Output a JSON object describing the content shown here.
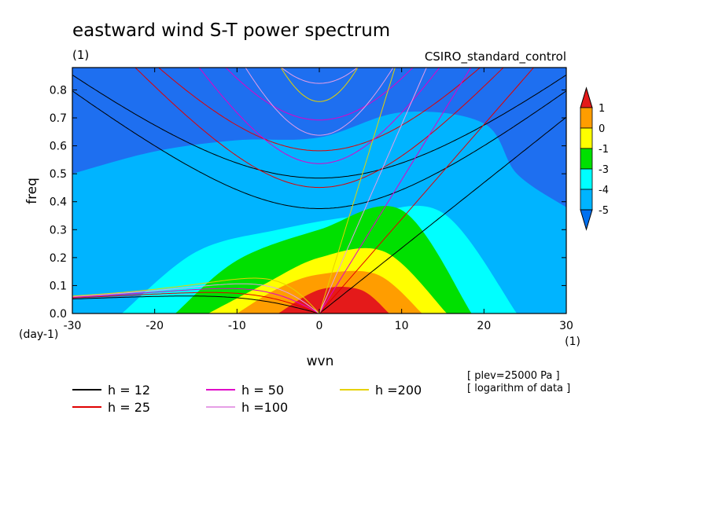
{
  "chart_data": {
    "type": "heatmap",
    "title": "eastward wind S-T power spectrum",
    "subtitle_left": "(1)",
    "subtitle_right": "CSIRO_standard_control",
    "xlabel": "wvn",
    "ylabel": "freq",
    "x_unit": "(1)",
    "y_unit": "(day-1)",
    "xlim": [
      -30,
      30
    ],
    "ylim": [
      0,
      0.88
    ],
    "x_ticks": [
      -30,
      -20,
      -10,
      0,
      10,
      20,
      30
    ],
    "y_ticks": [
      0.0,
      0.1,
      0.2,
      0.3,
      0.4,
      0.5,
      0.6,
      0.7,
      0.8
    ],
    "x_tick_labels": [
      "-30",
      "-20",
      "-10",
      "0",
      "10",
      "20",
      "30"
    ],
    "y_tick_labels": [
      "0.0",
      "0.1",
      "0.2",
      "0.3",
      "0.4",
      "0.5",
      "0.6",
      "0.7",
      "0.8"
    ],
    "colorbar": {
      "labels": [
        "1",
        "0",
        "-1",
        "-3",
        "-4",
        "-5"
      ],
      "colors": [
        "#e41a1a",
        "#ff9d00",
        "#ffff00",
        "#00e000",
        "#00ffff",
        "#00b4ff",
        "#0070f0"
      ]
    },
    "contour_fill": [
      {
        "level": "<-5",
        "color": "#1e6ff0",
        "x": [
          -30,
          30
        ],
        "ymax": 0.88
      },
      {
        "level": "-5",
        "color": "#00b4ff",
        "x": [
          -30,
          -20,
          -10,
          0,
          10,
          20,
          24,
          30,
          30,
          -30
        ],
        "y": [
          0.5,
          0.58,
          0.62,
          0.63,
          0.72,
          0.68,
          0.5,
          0.38,
          0.0,
          0.0
        ]
      },
      {
        "level": "-4",
        "color": "#00ffff",
        "x": [
          -24,
          -15,
          -5,
          5,
          15,
          24
        ],
        "y": [
          0.0,
          0.22,
          0.3,
          0.35,
          0.36,
          0.0
        ]
      },
      {
        "level": "-3",
        "color": "#00e000",
        "x": [
          -17.5,
          -10,
          0,
          10,
          18.5
        ],
        "y": [
          0.0,
          0.19,
          0.3,
          0.37,
          0.0
        ]
      },
      {
        "level": "-1",
        "color": "#ffff00",
        "x": [
          -13.5,
          -7,
          0,
          8,
          15.5
        ],
        "y": [
          0.0,
          0.1,
          0.2,
          0.22,
          0.0
        ]
      },
      {
        "level": "0",
        "color": "#ff9d00",
        "x": [
          -10,
          -5,
          0,
          7,
          12.5
        ],
        "y": [
          0.0,
          0.09,
          0.14,
          0.14,
          0.0
        ]
      },
      {
        "level": "1",
        "color": "#e41a1a",
        "x": [
          -5,
          0,
          5,
          8.5
        ],
        "y": [
          0.0,
          0.085,
          0.085,
          0.0
        ]
      }
    ],
    "dispersion_lines": [
      {
        "label": "h = 12",
        "color": "#000000",
        "h": 12
      },
      {
        "label": "h = 25",
        "color": "#e00000",
        "h": 25
      },
      {
        "label": "h = 50",
        "color": "#e000c8",
        "h": 50
      },
      {
        "label": "h =100",
        "color": "#e69ee6",
        "h": 100
      },
      {
        "label": "h =200",
        "color": "#e6d200",
        "h": 200
      }
    ],
    "annotations": [
      "[ plev=25000 Pa ]",
      "[ logarithm of data ]"
    ]
  }
}
